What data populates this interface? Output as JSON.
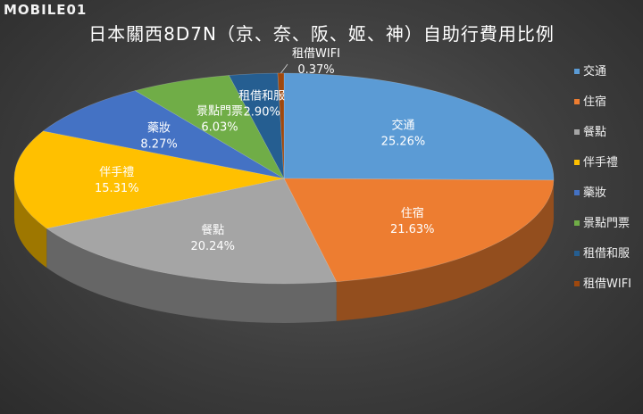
{
  "watermark": "MOBILE01",
  "chart_data": {
    "type": "pie",
    "title": "日本關西8D7N（京、奈、阪、姬、神）自助行費用比例",
    "categories": [
      "交通",
      "住宿",
      "餐點",
      "伴手禮",
      "藥妝",
      "景點門票",
      "租借和服",
      "租借WIFI"
    ],
    "values": [
      25.26,
      21.63,
      20.24,
      15.31,
      8.27,
      6.03,
      2.9,
      0.37
    ],
    "value_labels": [
      "25.26%",
      "21.63%",
      "20.24%",
      "15.31%",
      "8.27%",
      "6.03%",
      "2.90%",
      "0.37%"
    ],
    "colors": [
      "#5b9bd5",
      "#ed7d31",
      "#a5a5a5",
      "#ffc000",
      "#4472c4",
      "#70ad47",
      "#255e91",
      "#9e480e"
    ],
    "legend_position": "right",
    "style": "3d"
  }
}
